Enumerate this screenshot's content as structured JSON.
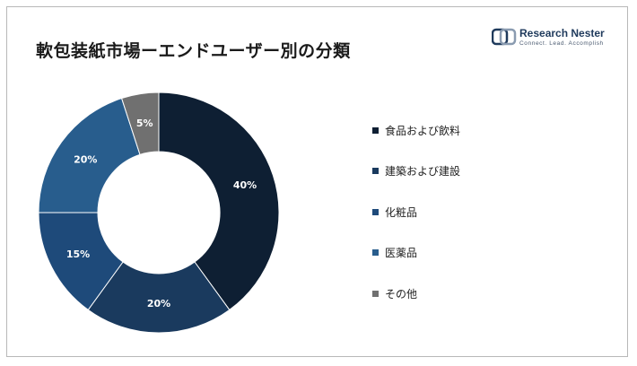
{
  "title": "軟包装紙市場ーエンドユーザー別の分類",
  "logo": {
    "name": "Research Nester",
    "tagline": "Connect. Lead. Accomplish",
    "icon": "research-nester-logo-icon"
  },
  "chart_data": {
    "type": "pie",
    "donut": true,
    "categories": [
      "食品および飲料",
      "建築および建設",
      "化粧品",
      "医薬品",
      "その他"
    ],
    "values": [
      40,
      20,
      15,
      20,
      5
    ],
    "labels": [
      "40%",
      "20%",
      "15%",
      "20%",
      "5%"
    ],
    "colors": [
      "#0e1f33",
      "#1a3a5e",
      "#1e4a7a",
      "#285d8d",
      "#707070"
    ],
    "legend_position": "right",
    "start_angle_deg": 0,
    "direction": "clockwise"
  }
}
